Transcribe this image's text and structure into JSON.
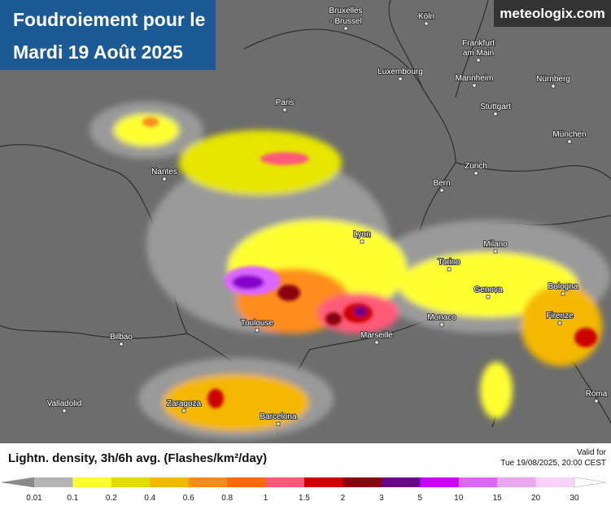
{
  "header": {
    "title_line1": "Foudroiement pour le",
    "title_line2": "Mardi 19 Août 2025",
    "brand": "meteologix.com"
  },
  "map": {
    "labels": [
      "Bruxelles",
      "- Brussel",
      "Köln",
      "Frankfurt",
      "am Main",
      "Luxembourg",
      "Mannheim",
      "Nürnberg",
      "Paris",
      "Stuttgart",
      "München",
      "Nantes",
      "Zürich",
      "Bern",
      "Lyon",
      "Milano",
      "Torino",
      "Genova",
      "Bologna",
      "Monaco",
      "Toulouse",
      "Firenze",
      "Bilbao",
      "Marseille",
      "Valladolid",
      "Zaragoza",
      "Roma",
      "Barcelona"
    ]
  },
  "legend": {
    "title": "Lightn. density, 3h/6h avg. (Flashes/km²/day)",
    "valid_label": "Valid for",
    "valid_time": "Tue 19/08/2025, 20:00 CEST",
    "ticks": [
      0.01,
      0.1,
      0.2,
      0.4,
      0.6,
      0.8,
      1,
      1.5,
      2,
      3,
      5,
      10,
      15,
      20,
      30
    ],
    "colors": [
      "#b4b4b4",
      "#ffff33",
      "#e3dc00",
      "#f4b800",
      "#ff8c1a",
      "#ff6a00",
      "#ff5a78",
      "#cc0000",
      "#8a0010",
      "#6a0088",
      "#c800ff",
      "#dd66ff",
      "#eba6f2",
      "#f8d2f8"
    ],
    "under_color": "#8a8a8a",
    "over_color": "#ffffff"
  }
}
